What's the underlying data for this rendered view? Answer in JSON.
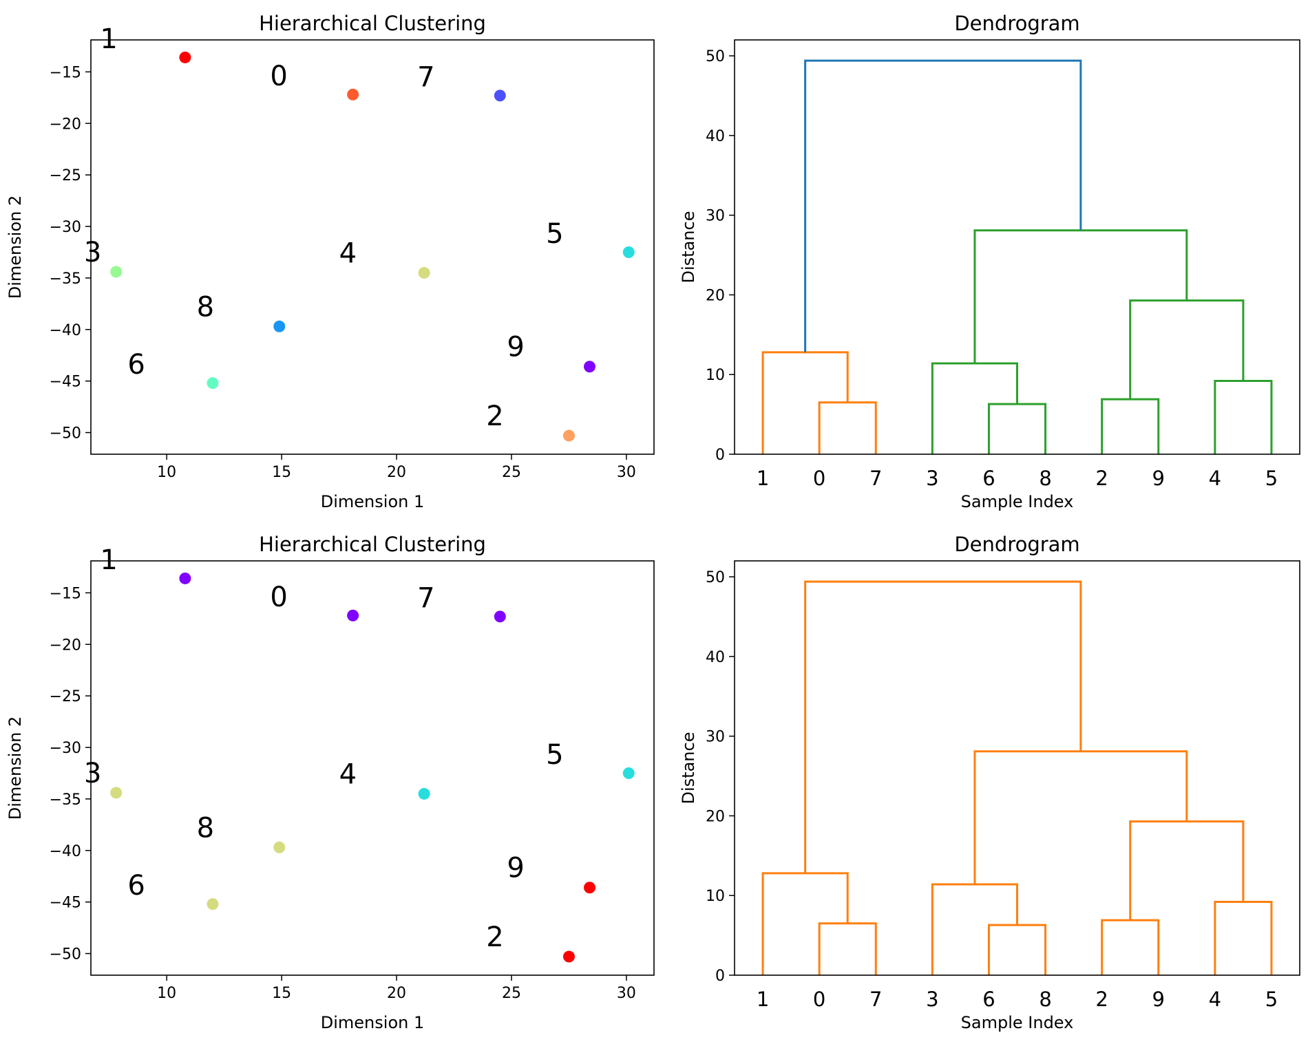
{
  "chart_data": [
    {
      "type": "scatter",
      "title": "Hierarchical Clustering",
      "xlabel": "Dimension 1",
      "ylabel": "Dimension 2",
      "xlim": [
        6.7,
        31.2
      ],
      "ylim": [
        -52.1,
        -11.9
      ],
      "xticks": [
        10,
        15,
        20,
        25,
        30
      ],
      "yticks": [
        -15,
        -20,
        -25,
        -30,
        -35,
        -40,
        -45,
        -50
      ],
      "points": [
        {
          "label": "0",
          "x": 18.1,
          "y": -17.2,
          "color": "#ff5a2e",
          "lx": 14.5,
          "ly": -16.3
        },
        {
          "label": "1",
          "x": 10.8,
          "y": -13.6,
          "color": "#ff0000",
          "lx": 7.1,
          "ly": -12.7
        },
        {
          "label": "2",
          "x": 27.5,
          "y": -50.3,
          "color": "#ffa060",
          "lx": 23.9,
          "ly": -49.3
        },
        {
          "label": "3",
          "x": 7.8,
          "y": -34.4,
          "color": "#96f991",
          "lx": 6.4,
          "ly": -33.4
        },
        {
          "label": "4",
          "x": 21.2,
          "y": -34.5,
          "color": "#d4dc7f",
          "lx": 17.5,
          "ly": -33.5
        },
        {
          "label": "5",
          "x": 30.1,
          "y": -32.5,
          "color": "#2adddd",
          "lx": 26.5,
          "ly": -31.6
        },
        {
          "label": "6",
          "x": 12.0,
          "y": -45.2,
          "color": "#62fcc3",
          "lx": 8.3,
          "ly": -44.3
        },
        {
          "label": "7",
          "x": 24.5,
          "y": -17.3,
          "color": "#4c50fc",
          "lx": 20.9,
          "ly": -16.4
        },
        {
          "label": "8",
          "x": 14.9,
          "y": -39.7,
          "color": "#1996f3",
          "lx": 11.3,
          "ly": -38.7
        },
        {
          "label": "9",
          "x": 28.4,
          "y": -43.6,
          "color": "#8000ff",
          "lx": 24.8,
          "ly": -42.6
        }
      ]
    },
    {
      "type": "dendrogram",
      "title": "Dendrogram",
      "xlabel": "Sample Index",
      "ylabel": "Distance",
      "ylim": [
        0,
        52
      ],
      "yticks": [
        0,
        10,
        20,
        30,
        40,
        50
      ],
      "leaves": [
        "1",
        "0",
        "7",
        "3",
        "6",
        "8",
        "2",
        "9",
        "4",
        "5"
      ],
      "links": [
        {
          "a": 1,
          "b": 2,
          "h": 6.5,
          "color": "#ff7f0e"
        },
        {
          "a": 0,
          "b": 1.5,
          "h": 12.8,
          "color": "#ff7f0e"
        },
        {
          "a": 4,
          "b": 5,
          "h": 6.3,
          "color": "#2ca02c"
        },
        {
          "a": 3,
          "b": 4.5,
          "h": 11.4,
          "color": "#2ca02c"
        },
        {
          "a": 6,
          "b": 7,
          "h": 6.9,
          "color": "#2ca02c"
        },
        {
          "a": 8,
          "b": 9,
          "h": 9.2,
          "color": "#2ca02c"
        },
        {
          "a": 6.5,
          "b": 8.5,
          "h": 19.3,
          "color": "#2ca02c"
        },
        {
          "a": 3.75,
          "b": 7.5,
          "h": 28.1,
          "color": "#2ca02c"
        },
        {
          "a": 0.75,
          "b": 5.625,
          "h": 49.4,
          "color": "#1f77b4"
        }
      ]
    },
    {
      "type": "scatter",
      "title": "Hierarchical Clustering",
      "xlabel": "Dimension 1",
      "ylabel": "Dimension 2",
      "xlim": [
        6.7,
        31.2
      ],
      "ylim": [
        -52.1,
        -11.9
      ],
      "xticks": [
        10,
        15,
        20,
        25,
        30
      ],
      "yticks": [
        -15,
        -20,
        -25,
        -30,
        -35,
        -40,
        -45,
        -50
      ],
      "points": [
        {
          "label": "0",
          "x": 18.1,
          "y": -17.2,
          "color": "#8000ff",
          "lx": 14.5,
          "ly": -16.3
        },
        {
          "label": "1",
          "x": 10.8,
          "y": -13.6,
          "color": "#8000ff",
          "lx": 7.1,
          "ly": -12.7
        },
        {
          "label": "2",
          "x": 27.5,
          "y": -50.3,
          "color": "#ff0000",
          "lx": 23.9,
          "ly": -49.3
        },
        {
          "label": "3",
          "x": 7.8,
          "y": -34.4,
          "color": "#d4dc7f",
          "lx": 6.4,
          "ly": -33.4
        },
        {
          "label": "4",
          "x": 21.2,
          "y": -34.5,
          "color": "#2adddd",
          "lx": 17.5,
          "ly": -33.5
        },
        {
          "label": "5",
          "x": 30.1,
          "y": -32.5,
          "color": "#2adddd",
          "lx": 26.5,
          "ly": -31.6
        },
        {
          "label": "6",
          "x": 12.0,
          "y": -45.2,
          "color": "#d4dc7f",
          "lx": 8.3,
          "ly": -44.3
        },
        {
          "label": "7",
          "x": 24.5,
          "y": -17.3,
          "color": "#8000ff",
          "lx": 20.9,
          "ly": -16.4
        },
        {
          "label": "8",
          "x": 14.9,
          "y": -39.7,
          "color": "#d4dc7f",
          "lx": 11.3,
          "ly": -38.7
        },
        {
          "label": "9",
          "x": 28.4,
          "y": -43.6,
          "color": "#ff0000",
          "lx": 24.8,
          "ly": -42.6
        }
      ]
    },
    {
      "type": "dendrogram",
      "title": "Dendrogram",
      "xlabel": "Sample Index",
      "ylabel": "Distance",
      "ylim": [
        0,
        52
      ],
      "yticks": [
        0,
        10,
        20,
        30,
        40,
        50
      ],
      "leaves": [
        "1",
        "0",
        "7",
        "3",
        "6",
        "8",
        "2",
        "9",
        "4",
        "5"
      ],
      "links": [
        {
          "a": 1,
          "b": 2,
          "h": 6.5,
          "color": "#ff7f0e"
        },
        {
          "a": 0,
          "b": 1.5,
          "h": 12.8,
          "color": "#ff7f0e"
        },
        {
          "a": 4,
          "b": 5,
          "h": 6.3,
          "color": "#ff7f0e"
        },
        {
          "a": 3,
          "b": 4.5,
          "h": 11.4,
          "color": "#ff7f0e"
        },
        {
          "a": 6,
          "b": 7,
          "h": 6.9,
          "color": "#ff7f0e"
        },
        {
          "a": 8,
          "b": 9,
          "h": 9.2,
          "color": "#ff7f0e"
        },
        {
          "a": 6.5,
          "b": 8.5,
          "h": 19.3,
          "color": "#ff7f0e"
        },
        {
          "a": 3.75,
          "b": 7.5,
          "h": 28.1,
          "color": "#ff7f0e"
        },
        {
          "a": 0.75,
          "b": 5.625,
          "h": 49.4,
          "color": "#ff7f0e"
        }
      ]
    }
  ]
}
